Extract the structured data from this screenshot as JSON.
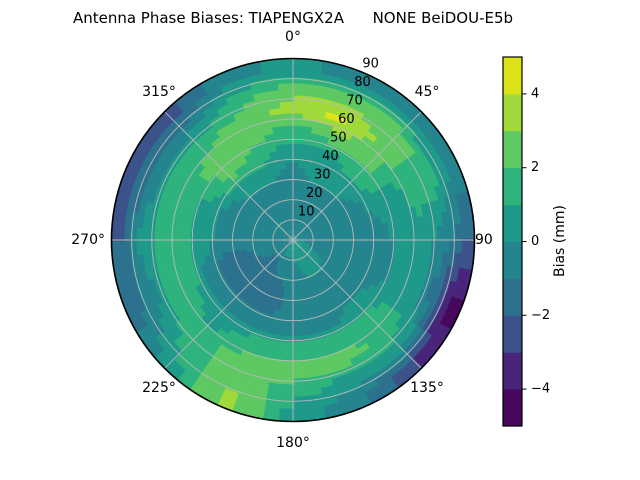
{
  "title": "Antenna Phase Biases: TIAPENGX2A      NONE BeiDOU-E5b",
  "polar": {
    "azimuth_labels": [
      "0°",
      "45°",
      "90",
      "135°",
      "180°",
      "225°",
      "270°",
      "315°"
    ],
    "radial_labels": [
      "10",
      "20",
      "30",
      "40",
      "50",
      "60",
      "70",
      "80",
      "90"
    ]
  },
  "colorbar": {
    "label": "Bias (mm)",
    "tick_labels": [
      "4",
      "2",
      "0",
      "−2",
      "−4"
    ]
  },
  "chart_data": {
    "type": "polar_contour",
    "title": "Antenna Phase Biases: TIAPENGX2A      NONE BeiDOU-E5b",
    "antenna": "TIAPENGX2A",
    "dome": "NONE",
    "signal": "BeiDOU-E5b",
    "colormap": "viridis",
    "value_label": "Bias (mm)",
    "units": "mm",
    "value_range": [
      -5,
      5
    ],
    "contour_step_mm": 1,
    "band_colors": [
      "#46085c",
      "#48257b",
      "#3b528b",
      "#2c728e",
      "#25858e",
      "#1f998a",
      "#2eb37c",
      "#5ec863",
      "#9fda3a",
      "#dce319"
    ],
    "colorbar_tick_values": [
      4,
      2,
      0,
      -2,
      -4
    ],
    "azimuth_tick_deg": [
      0,
      45,
      90,
      135,
      180,
      225,
      270,
      315
    ],
    "zenith_ring_deg": [
      10,
      20,
      30,
      40,
      50,
      60,
      70,
      80,
      90
    ],
    "grid_azimuth_deg": [
      0,
      22.5,
      45,
      67.5,
      90,
      112.5,
      135,
      157.5,
      180,
      202.5,
      225,
      247.5,
      270,
      292.5,
      315,
      337.5
    ],
    "grid_zenith_deg": [
      5,
      15,
      25,
      35,
      45,
      55,
      65,
      75,
      85
    ],
    "bias_mm": [
      [
        -0.5,
        -0.5,
        -0.5,
        -0.5,
        0.5,
        1.5,
        3.6,
        2.5,
        0.5
      ],
      [
        -0.5,
        -0.5,
        -0.5,
        0.5,
        0.5,
        2.5,
        4.4,
        2.5,
        -0.5
      ],
      [
        -0.5,
        -0.5,
        -0.5,
        0.5,
        1.5,
        2.5,
        2.5,
        2.5,
        -0.5
      ],
      [
        -0.5,
        -0.5,
        -0.5,
        -0.5,
        0.5,
        0.5,
        1.5,
        1.5,
        -0.5
      ],
      [
        -0.5,
        -0.5,
        -0.5,
        -0.5,
        -0.5,
        0.5,
        0.5,
        -0.5,
        -1.8
      ],
      [
        0.5,
        -0.5,
        -0.5,
        -0.5,
        -0.5,
        0.5,
        0.5,
        -1.5,
        -4.5
      ],
      [
        0.5,
        0.5,
        -0.5,
        -0.5,
        0.5,
        1.5,
        1.5,
        0.5,
        -3.0
      ],
      [
        0.5,
        0.5,
        -0.5,
        -0.5,
        -0.5,
        1.5,
        2.5,
        0.5,
        -0.5
      ],
      [
        0.5,
        -0.5,
        -0.5,
        -0.5,
        -0.5,
        1.5,
        2.5,
        1.5,
        0.5
      ],
      [
        0.5,
        -0.5,
        -1.5,
        -1.5,
        -0.5,
        1.5,
        2.5,
        2.5,
        3.5
      ],
      [
        -0.5,
        -1.5,
        -1.5,
        -1.5,
        -0.5,
        0.5,
        1.5,
        1.5,
        0.5
      ],
      [
        -0.5,
        -0.5,
        -1.5,
        -1.5,
        -0.5,
        1.5,
        1.5,
        -0.5,
        -1.5
      ],
      [
        -0.5,
        -0.5,
        -0.5,
        -0.5,
        0.5,
        1.5,
        1.5,
        0.5,
        -2.0
      ],
      [
        -0.5,
        -0.5,
        -0.5,
        -0.5,
        0.5,
        1.5,
        1.5,
        -0.5,
        -2.5
      ],
      [
        -0.5,
        -0.5,
        -0.5,
        0.5,
        2.5,
        2.5,
        1.5,
        -0.5,
        -2.5
      ],
      [
        -0.5,
        -0.5,
        -0.5,
        0.5,
        1.5,
        2.5,
        2.5,
        1.5,
        -0.5
      ]
    ]
  }
}
